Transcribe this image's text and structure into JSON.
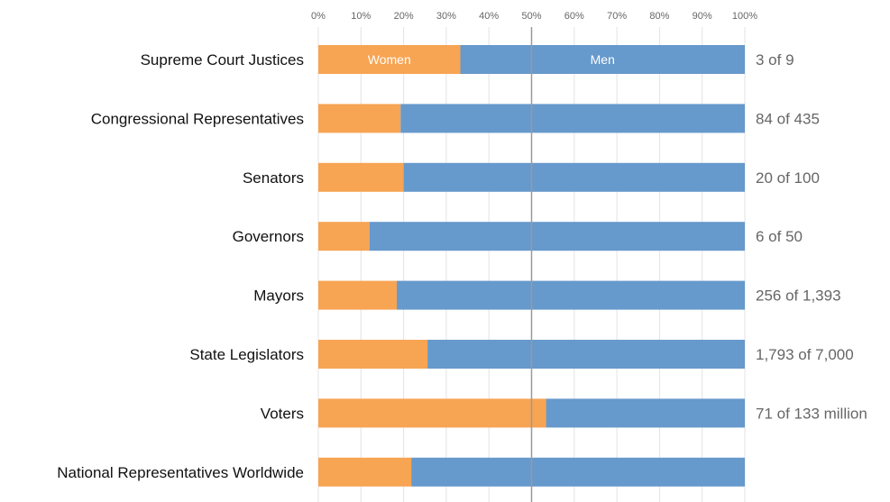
{
  "chart_data": {
    "type": "bar",
    "orientation": "horizontal",
    "stacked": true,
    "x_ticks": [
      "0%",
      "10%",
      "20%",
      "30%",
      "40%",
      "50%",
      "60%",
      "70%",
      "80%",
      "90%",
      "100%"
    ],
    "xlim": [
      0,
      100
    ],
    "grid": true,
    "reference_line": 50,
    "categories": [
      "Supreme Court Justices",
      "Congressional Representatives",
      "Senators",
      "Governors",
      "Mayors",
      "State Legislators",
      "Voters",
      "National Representatives Worldwide"
    ],
    "series": [
      {
        "name": "Women",
        "color": "#F7A453",
        "values": [
          33.3,
          19.3,
          20,
          12,
          18.4,
          25.6,
          53.4,
          21.8
        ]
      },
      {
        "name": "Men",
        "color": "#6699CC",
        "values": [
          66.7,
          80.7,
          80,
          88,
          81.6,
          74.4,
          46.6,
          78.2
        ]
      }
    ],
    "counts": [
      "3 of 9",
      "84 of 435",
      "20 of 100",
      "6 of 50",
      "256 of 1,393",
      "1,793 of 7,000",
      "71 of 133 million",
      ""
    ]
  }
}
